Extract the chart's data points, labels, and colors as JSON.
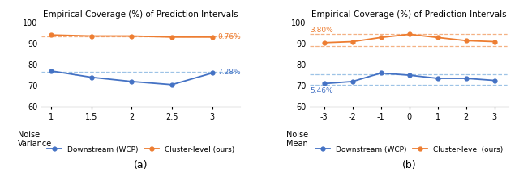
{
  "plot_a": {
    "title": "Empirical Coverage (%) of Prediction Intervals",
    "xlabel_text": "Noise\nVariance",
    "x": [
      1,
      1.5,
      2,
      2.5,
      3
    ],
    "blue_y": [
      77.0,
      74.0,
      72.0,
      70.5,
      76.0
    ],
    "orange_y": [
      94.2,
      93.7,
      93.7,
      93.2,
      93.2
    ],
    "blue_dashed_y": 76.5,
    "orange_dashed_y": 93.65,
    "blue_annot": "7.28%",
    "orange_annot": "0.76%",
    "ylim": [
      60,
      101
    ],
    "yticks": [
      60,
      70,
      80,
      90,
      100
    ],
    "xticks": [
      1,
      1.5,
      2,
      2.5,
      3
    ],
    "xticklabels": [
      "1",
      "1.5",
      "2",
      "2.5",
      "3"
    ],
    "blue_color": "#4472C4",
    "orange_color": "#ED7D31",
    "blue_dashed_color": "#9DC3E6",
    "orange_dashed_color": "#F4B183",
    "sub_label": "(a)"
  },
  "plot_b": {
    "title": "Empirical Coverage (%) of Prediction Intervals",
    "xlabel_text": "Noise\nMean",
    "x": [
      -3,
      -2,
      -1,
      0,
      1,
      2,
      3
    ],
    "blue_y": [
      71.0,
      72.0,
      76.0,
      75.0,
      73.5,
      73.5,
      72.5
    ],
    "orange_y": [
      90.5,
      91.0,
      93.0,
      94.5,
      93.0,
      91.5,
      91.0
    ],
    "blue_dashed_upper": 75.5,
    "blue_dashed_lower": 70.5,
    "orange_dashed_upper": 94.5,
    "orange_dashed_lower": 89.0,
    "blue_annot": "5.46%",
    "orange_annot": "3.80%",
    "ylim": [
      60,
      101
    ],
    "yticks": [
      60,
      70,
      80,
      90,
      100
    ],
    "xticks": [
      -3,
      -2,
      -1,
      0,
      1,
      2,
      3
    ],
    "xticklabels": [
      "-3",
      "-2",
      "-1",
      "0",
      "1",
      "2",
      "3"
    ],
    "blue_color": "#4472C4",
    "orange_color": "#ED7D31",
    "blue_dashed_color": "#9DC3E6",
    "orange_dashed_color": "#F4B183",
    "sub_label": "(b)"
  },
  "legend": {
    "blue_label": "Downstream (WCP)",
    "orange_label": "Cluster-level (ours)"
  },
  "bg_color": "#FFFFFF",
  "grid_color": "#D9D9D9",
  "title_fontsize": 7.5,
  "tick_fontsize": 7,
  "annot_fontsize": 6.5,
  "legend_fontsize": 6.5,
  "xlabel_fontsize": 7,
  "sublabel_fontsize": 9
}
